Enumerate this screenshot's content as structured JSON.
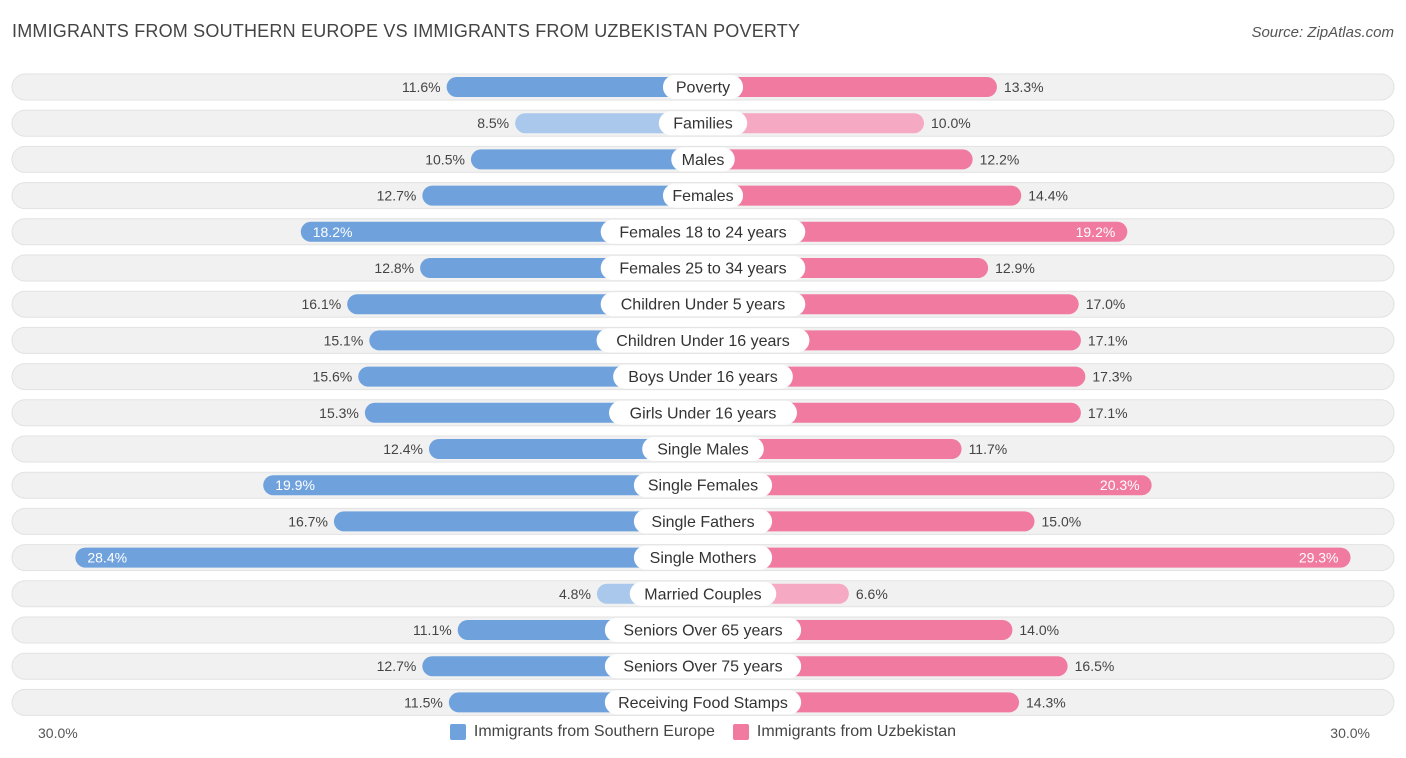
{
  "header": {
    "title": "IMMIGRANTS FROM SOUTHERN EUROPE VS IMMIGRANTS FROM UZBEKISTAN POVERTY",
    "source": "Source: ZipAtlas.com"
  },
  "colors": {
    "left": "#6fa2dd",
    "left_light": "#a9c8ec",
    "right": "#f07aa0",
    "right_light": "#f6a9c2",
    "row_bg": "#f1f1f1",
    "row_border": "#e2e2e2"
  },
  "chart_data": {
    "type": "bar",
    "orientation": "horizontal-diverging",
    "title": "IMMIGRANTS FROM SOUTHERN EUROPE VS IMMIGRANTS FROM UZBEKISTAN POVERTY",
    "categories": [
      "Poverty",
      "Families",
      "Males",
      "Females",
      "Females 18 to 24 years",
      "Females 25 to 34 years",
      "Children Under 5 years",
      "Children Under 16 years",
      "Boys Under 16 years",
      "Girls Under 16 years",
      "Single Males",
      "Single Females",
      "Single Fathers",
      "Single Mothers",
      "Married Couples",
      "Seniors Over 65 years",
      "Seniors Over 75 years",
      "Receiving Food Stamps"
    ],
    "series": [
      {
        "name": "Immigrants from Southern Europe",
        "values": [
          11.6,
          8.5,
          10.5,
          12.7,
          18.2,
          12.8,
          16.1,
          15.1,
          15.6,
          15.3,
          12.4,
          19.9,
          16.7,
          28.4,
          4.8,
          11.1,
          12.7,
          11.5
        ],
        "labels": [
          "11.6%",
          "8.5%",
          "10.5%",
          "12.7%",
          "18.2%",
          "12.8%",
          "16.1%",
          "15.1%",
          "15.6%",
          "15.3%",
          "12.4%",
          "19.9%",
          "16.7%",
          "28.4%",
          "4.8%",
          "11.1%",
          "12.7%",
          "11.5%"
        ]
      },
      {
        "name": "Immigrants from Uzbekistan",
        "values": [
          13.3,
          10.0,
          12.2,
          14.4,
          19.2,
          12.9,
          17.0,
          17.1,
          17.3,
          17.1,
          11.7,
          20.3,
          15.0,
          29.3,
          6.6,
          14.0,
          16.5,
          14.3
        ],
        "labels": [
          "13.3%",
          "10.0%",
          "12.2%",
          "14.4%",
          "19.2%",
          "12.9%",
          "17.0%",
          "17.1%",
          "17.3%",
          "17.1%",
          "11.7%",
          "20.3%",
          "15.0%",
          "29.3%",
          "6.6%",
          "14.0%",
          "16.5%",
          "14.3%"
        ]
      }
    ],
    "xlim": [
      -30,
      30
    ],
    "axis_labels": {
      "left": "30.0%",
      "right": "30.0%"
    },
    "legend_placement": "bottom-center"
  },
  "legend": {
    "left_label": "Immigrants from Southern Europe",
    "right_label": "Immigrants from Uzbekistan"
  }
}
